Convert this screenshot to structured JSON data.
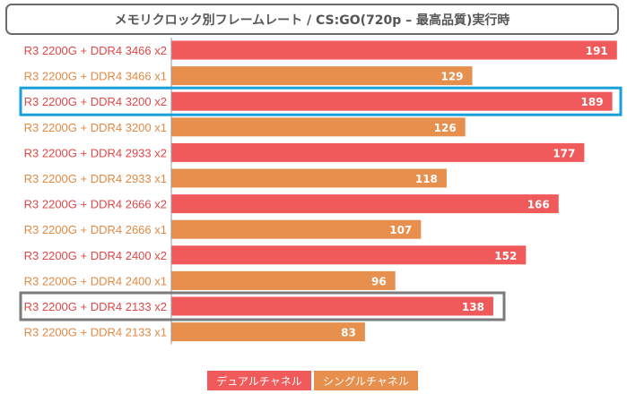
{
  "title": "メモリクロック別フレームレート / CS:GO(720p – 最高品質)実行時",
  "chart_data": {
    "type": "bar",
    "orientation": "horizontal",
    "title": "メモリクロック別フレームレート / CS:GO(720p – 最高品質)実行時",
    "categories": [
      "R3 2200G + DDR4 3466 x2",
      "R3 2200G + DDR4 3466 x1",
      "R3 2200G + DDR4 3200 x2",
      "R3 2200G + DDR4 3200 x1",
      "R3 2200G + DDR4 2933 x2",
      "R3 2200G + DDR4 2933 x1",
      "R3 2200G + DDR4 2666 x2",
      "R3 2200G + DDR4 2666 x1",
      "R3 2200G + DDR4 2400 x2",
      "R3 2200G + DDR4 2400 x1",
      "R3 2200G + DDR4 2133 x2",
      "R3 2200G + DDR4 2133 x1"
    ],
    "values": [
      191,
      129,
      189,
      126,
      177,
      118,
      166,
      107,
      152,
      96,
      138,
      83
    ],
    "series_index": [
      0,
      1,
      0,
      1,
      0,
      1,
      0,
      1,
      0,
      1,
      0,
      1
    ],
    "highlighted": [
      2,
      10
    ],
    "highlight_colors": [
      "#1aa0d8",
      "#7a7a7a"
    ],
    "xlim": [
      0,
      193
    ],
    "grid": false,
    "legend_position": "bottom-center",
    "series": [
      {
        "name": "デュアルチャネル",
        "color": "#f05a5a"
      },
      {
        "name": "シングルチャネル",
        "color": "#e78f4c"
      }
    ]
  }
}
